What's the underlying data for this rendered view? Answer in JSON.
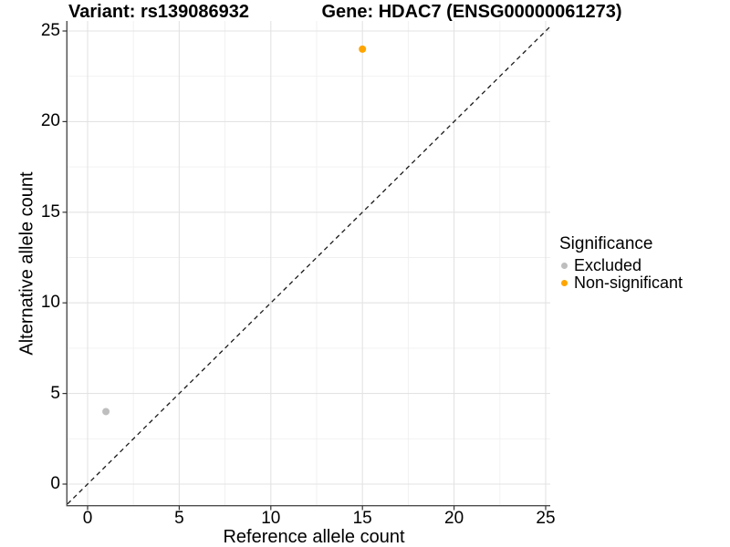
{
  "titles": {
    "variant": "Variant: rs139086932",
    "gene": "Gene: HDAC7 (ENSG00000061273)"
  },
  "chart_data": {
    "type": "scatter",
    "xlabel": "Reference allele count",
    "ylabel": "Alternative allele count",
    "xlim": [
      0,
      25
    ],
    "ylim": [
      0,
      25
    ],
    "x_ticks": [
      0,
      5,
      10,
      15,
      20,
      25
    ],
    "y_ticks": [
      0,
      5,
      10,
      15,
      20,
      25
    ],
    "x_minor_ticks": [
      2.5,
      7.5,
      12.5,
      17.5,
      22.5
    ],
    "y_minor_ticks": [
      2.5,
      7.5,
      12.5,
      17.5,
      22.5
    ],
    "grid": "major and minor gridlines, light gray on white",
    "identity_line": {
      "slope": 1,
      "intercept": 0,
      "style": "dashed",
      "color": "#1A1A1A"
    },
    "series": [
      {
        "name": "Excluded",
        "color": "#BEBEBE",
        "points": [
          {
            "x": 1,
            "y": 4
          }
        ]
      },
      {
        "name": "Non-significant",
        "color": "#FFA500",
        "points": [
          {
            "x": 15,
            "y": 24
          }
        ]
      }
    ],
    "legend": {
      "title": "Significance",
      "position": "right"
    }
  }
}
